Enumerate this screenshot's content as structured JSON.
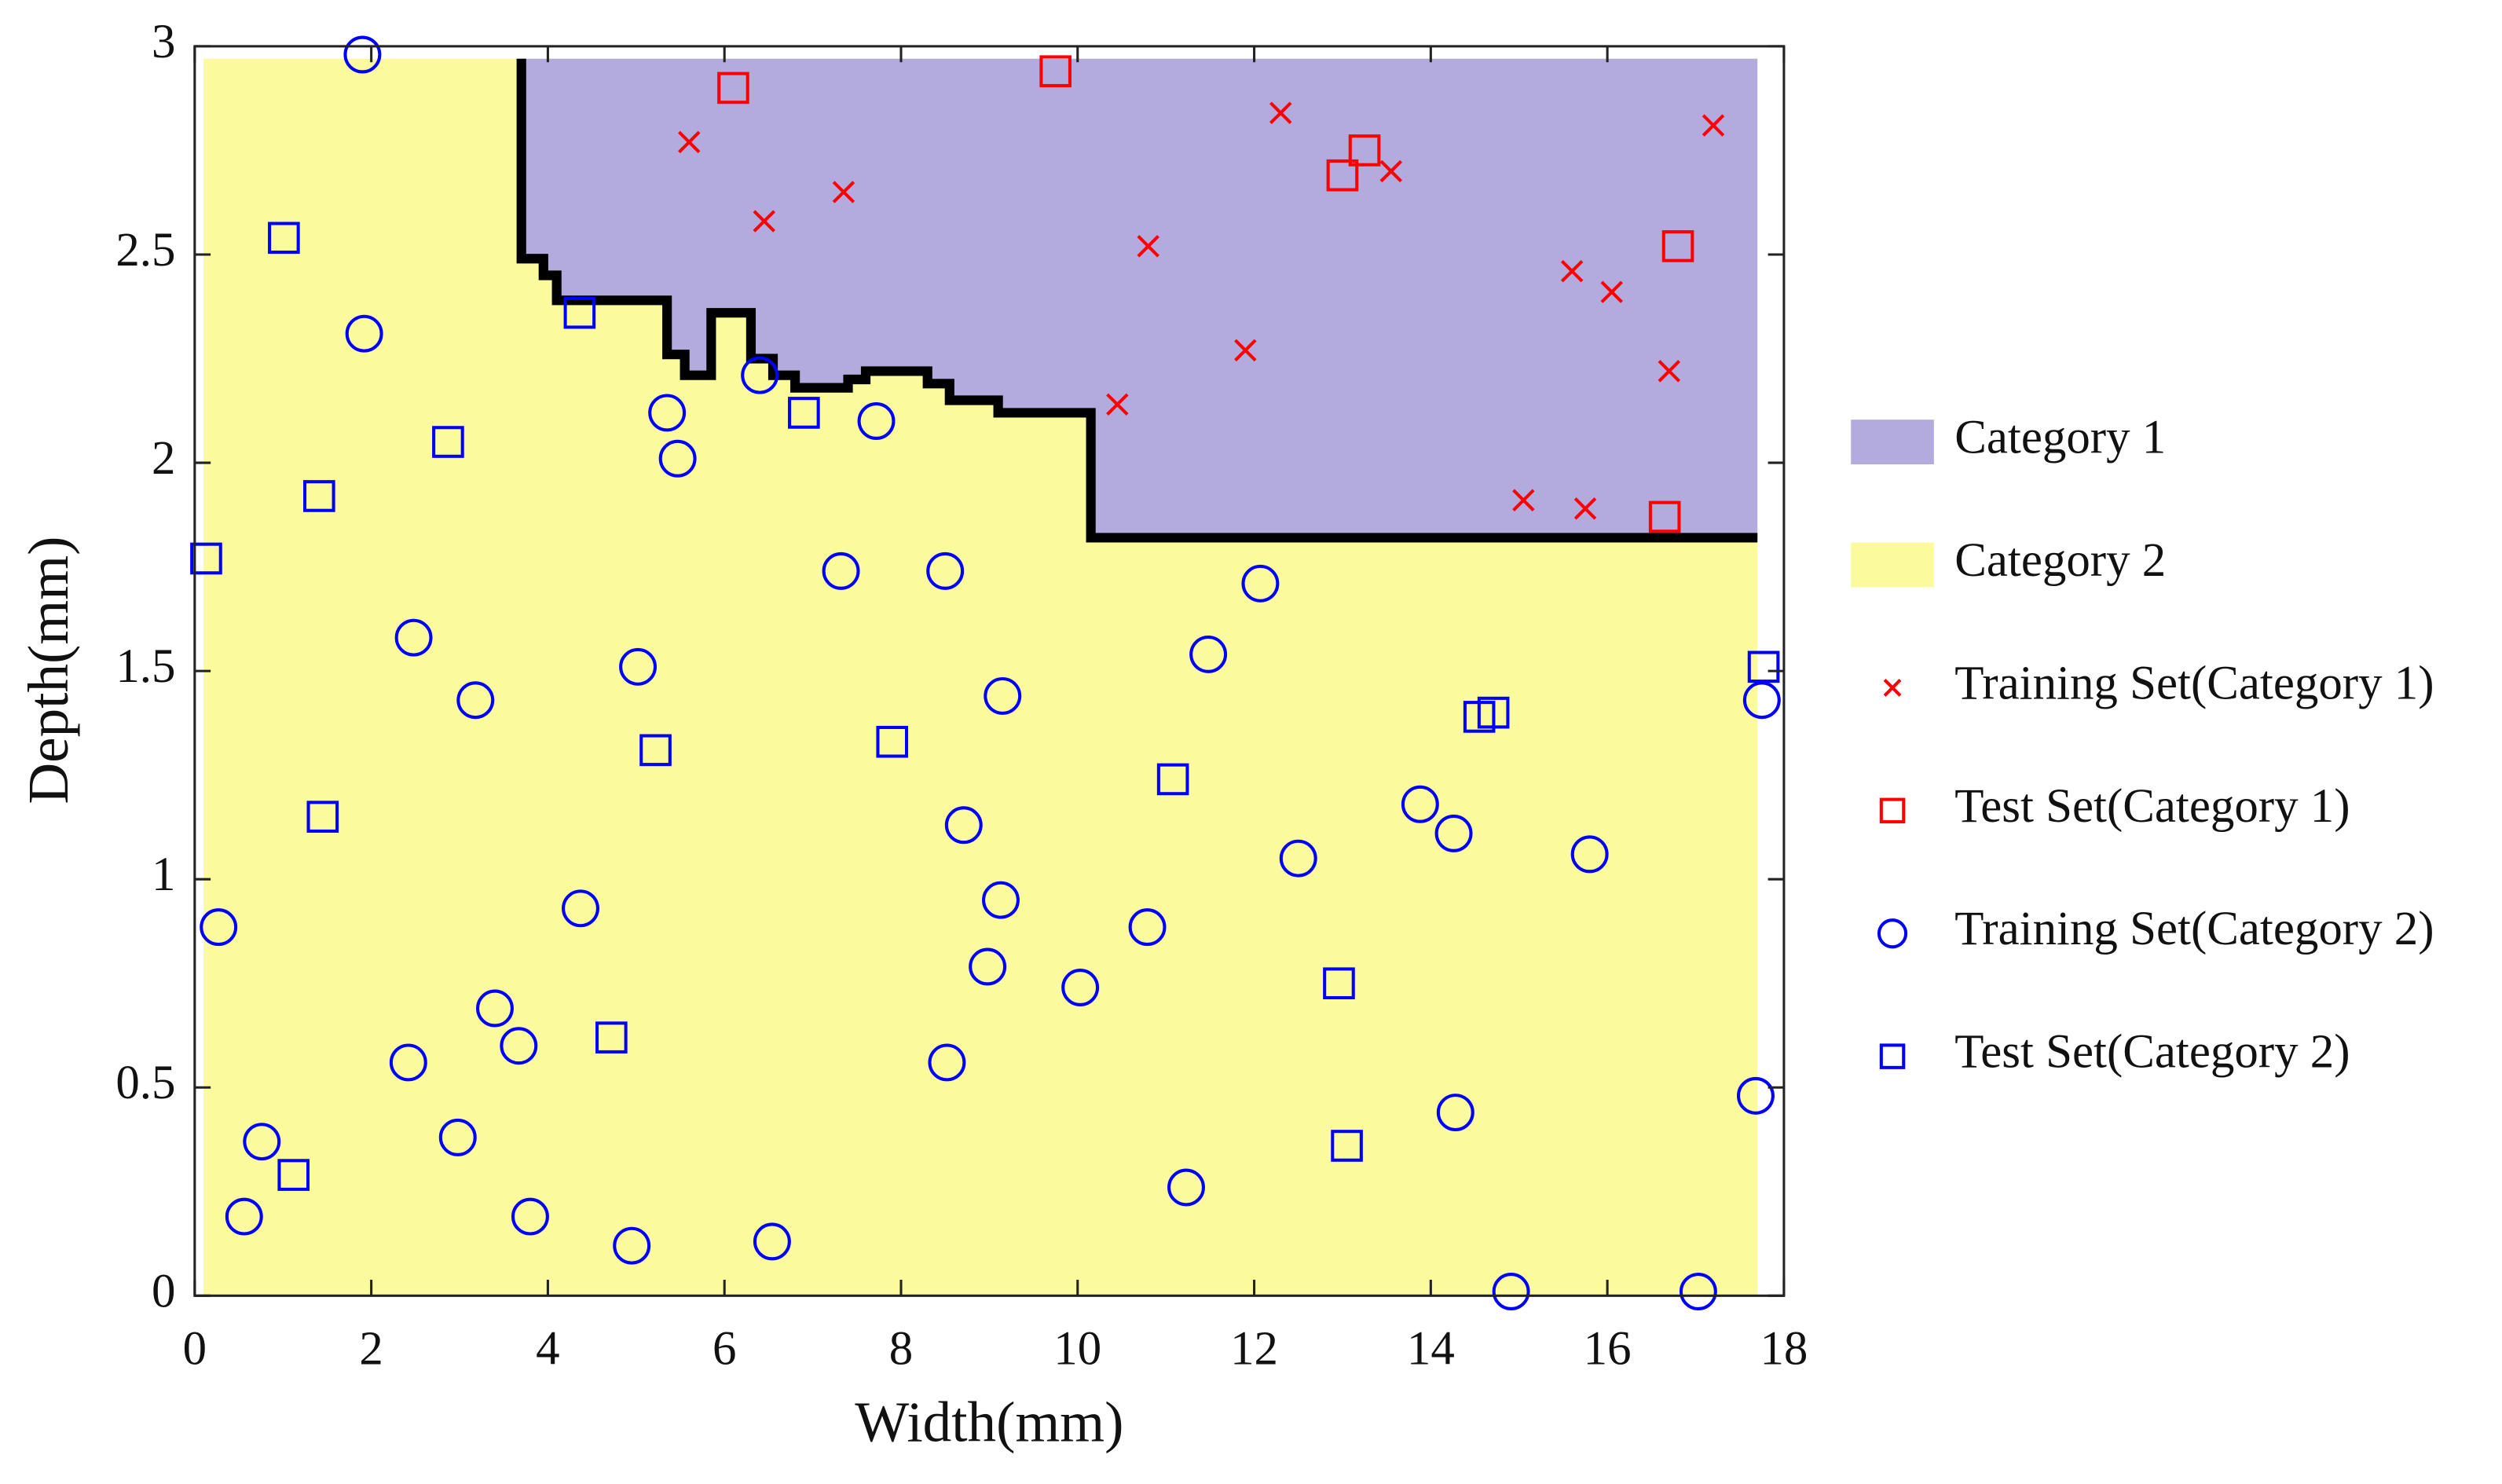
{
  "chart_data": {
    "type": "scatter",
    "xlabel": "Width(mm)",
    "ylabel": "Depth(mm)",
    "xlim": [
      0,
      18
    ],
    "ylim": [
      0,
      3
    ],
    "xticks": [
      0,
      2,
      4,
      6,
      8,
      10,
      12,
      14,
      16,
      18
    ],
    "yticks": [
      0,
      0.5,
      1,
      1.5,
      2,
      2.5,
      3
    ],
    "regions": [
      {
        "name": "Category 1",
        "color": "#b3abdd"
      },
      {
        "name": "Category 2",
        "color": "#fbfb9d"
      }
    ],
    "region_x": [
      0.1,
      17.7
    ],
    "region_y": [
      0,
      2.97
    ],
    "boundary": {
      "x": [
        3.7,
        3.7,
        3.95,
        3.95,
        4.1,
        4.1,
        5.35,
        5.35,
        5.55,
        5.55,
        5.85,
        5.85,
        6.3,
        6.3,
        6.55,
        6.55,
        6.8,
        6.8,
        7.4,
        7.4,
        7.6,
        7.6,
        8.3,
        8.3,
        8.55,
        8.55,
        9.1,
        9.1,
        10.15,
        10.15,
        17.7
      ],
      "y": [
        2.97,
        2.49,
        2.49,
        2.45,
        2.45,
        2.39,
        2.39,
        2.26,
        2.26,
        2.21,
        2.21,
        2.36,
        2.36,
        2.25,
        2.25,
        2.21,
        2.21,
        2.18,
        2.18,
        2.2,
        2.2,
        2.22,
        2.22,
        2.19,
        2.19,
        2.15,
        2.15,
        2.12,
        2.12,
        1.82,
        1.82
      ]
    },
    "series": [
      {
        "name": "Training Set(Category 1)",
        "color": "#ff0000",
        "marker": "x",
        "x": [
          5.6,
          6.45,
          7.35,
          10.8,
          10.45,
          11.9,
          12.3,
          13.55,
          15.6,
          16.05,
          16.7,
          17.2,
          15.05,
          15.75
        ],
        "y": [
          2.77,
          2.58,
          2.65,
          2.52,
          2.14,
          2.27,
          2.84,
          2.7,
          2.46,
          2.41,
          2.22,
          2.81,
          1.91,
          1.89
        ]
      },
      {
        "name": "Test Set(Category 1)",
        "color": "#ff0000",
        "marker": "square",
        "x": [
          6.1,
          9.75,
          13.0,
          13.25,
          16.8,
          16.65
        ],
        "y": [
          2.9,
          2.94,
          2.69,
          2.75,
          2.52,
          1.87
        ]
      },
      {
        "name": "Training Set(Category 2)",
        "color": "#0000ff",
        "marker": "circle",
        "x": [
          1.9,
          1.92,
          0.27,
          0.76,
          0.56,
          2.48,
          3.18,
          2.42,
          2.98,
          3.4,
          3.67,
          3.8,
          4.37,
          4.95,
          5.02,
          5.35,
          5.47,
          6.4,
          6.54,
          7.32,
          7.72,
          8.5,
          8.52,
          8.71,
          8.98,
          9.15,
          9.13,
          10.03,
          10.79,
          11.23,
          11.48,
          12.07,
          12.5,
          13.88,
          14.26,
          14.28,
          14.91,
          15.8,
          17.03,
          17.68,
          17.75
        ],
        "y": [
          2.98,
          2.31,
          0.885,
          0.37,
          0.19,
          1.58,
          1.43,
          0.56,
          0.38,
          0.69,
          0.6,
          0.19,
          0.93,
          0.12,
          1.51,
          2.12,
          2.01,
          2.21,
          0.13,
          1.74,
          2.1,
          1.74,
          0.56,
          1.13,
          0.79,
          1.44,
          0.95,
          0.74,
          0.885,
          0.26,
          1.54,
          1.71,
          1.05,
          1.18,
          1.11,
          0.44,
          0.01,
          1.06,
          0.01,
          0.48,
          1.43
        ]
      },
      {
        "name": "Test Set(Category 2)",
        "color": "#0000ff",
        "marker": "square",
        "x": [
          1.01,
          0.13,
          1.41,
          1.45,
          1.12,
          2.87,
          4.36,
          4.72,
          5.22,
          6.9,
          7.9,
          11.08,
          12.96,
          13.05,
          14.55,
          14.71,
          17.77
        ],
        "y": [
          2.54,
          1.77,
          1.92,
          1.15,
          0.29,
          2.05,
          2.36,
          0.62,
          1.31,
          2.12,
          1.33,
          1.24,
          0.75,
          0.36,
          1.39,
          1.4,
          1.51
        ]
      }
    ]
  }
}
